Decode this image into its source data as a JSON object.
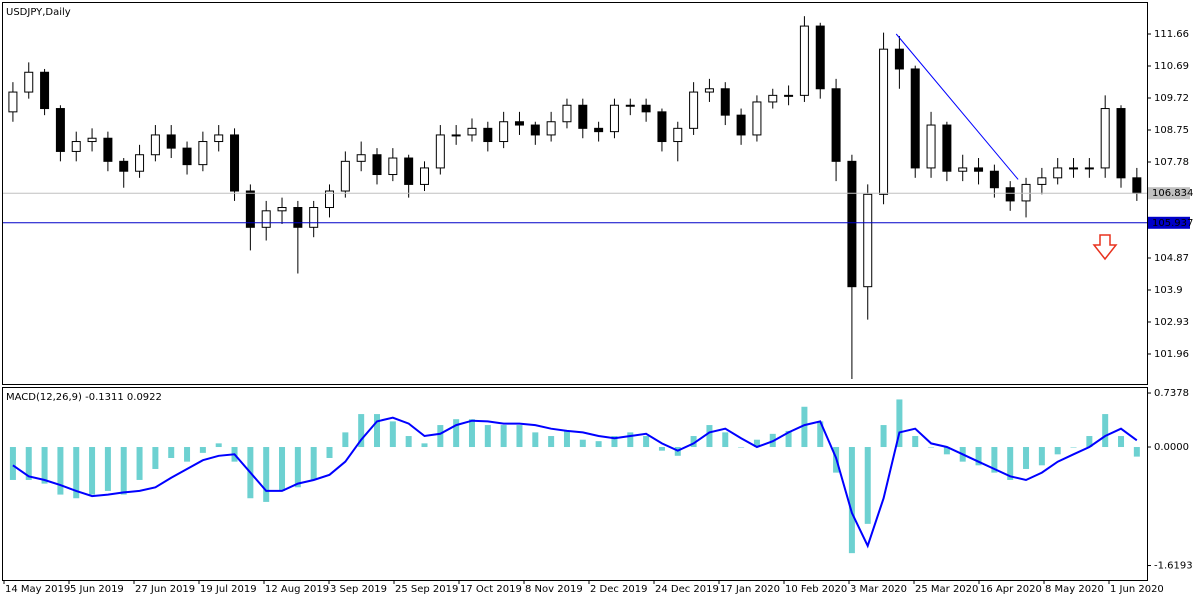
{
  "chart_data": [
    {
      "type": "candlestick",
      "title": "USDJPY,Daily",
      "open": [
        109.3,
        109.9,
        110.5,
        109.4,
        108.1,
        108.4,
        108.5,
        107.8,
        107.5,
        108.0,
        108.6,
        108.2,
        107.7,
        108.4,
        108.6,
        106.9,
        105.8,
        106.3,
        106.4,
        105.8,
        106.4,
        106.9,
        107.8,
        108.0,
        107.4,
        107.9,
        107.1,
        107.6,
        108.6,
        108.6,
        108.8,
        108.4,
        109.0,
        108.9,
        108.6,
        109.0,
        109.5,
        108.8,
        108.7,
        109.5,
        109.5,
        109.3,
        108.4,
        108.8,
        109.9,
        110.0,
        109.2,
        108.6,
        109.6,
        109.8,
        109.8,
        111.9,
        110.0,
        107.8,
        104.0,
        106.8,
        111.2,
        110.6,
        107.6,
        108.9,
        107.5,
        107.6,
        107.5,
        107.0,
        106.6,
        107.1,
        107.3,
        107.6,
        107.6,
        107.6,
        109.4,
        107.3
      ],
      "high": [
        110.2,
        110.8,
        110.6,
        109.5,
        108.7,
        108.8,
        108.7,
        107.9,
        108.3,
        108.9,
        108.9,
        108.4,
        108.7,
        108.9,
        108.8,
        107.1,
        106.6,
        106.7,
        106.6,
        106.6,
        107.1,
        108.1,
        108.4,
        108.2,
        108.2,
        108.0,
        107.8,
        108.9,
        108.9,
        109.1,
        109.0,
        109.3,
        109.3,
        109.0,
        109.3,
        109.7,
        109.7,
        109.0,
        109.7,
        109.7,
        109.7,
        109.4,
        109.0,
        110.2,
        110.3,
        110.2,
        109.4,
        109.8,
        110.0,
        110.1,
        112.2,
        112.0,
        110.3,
        108.0,
        107.1,
        111.7,
        111.6,
        110.7,
        109.3,
        109.0,
        108.0,
        107.9,
        107.7,
        107.2,
        107.3,
        107.6,
        107.9,
        107.9,
        107.9,
        109.8,
        109.5,
        107.6
      ],
      "low": [
        109.0,
        109.7,
        109.2,
        107.8,
        107.8,
        108.1,
        107.5,
        107.0,
        107.3,
        107.8,
        107.9,
        107.4,
        107.5,
        108.1,
        106.6,
        105.1,
        105.4,
        105.9,
        104.4,
        105.5,
        106.1,
        106.7,
        107.5,
        107.1,
        107.2,
        106.7,
        106.9,
        107.4,
        108.3,
        108.4,
        108.1,
        108.2,
        108.6,
        108.3,
        108.4,
        108.8,
        108.5,
        108.4,
        108.5,
        109.2,
        109.0,
        108.1,
        107.8,
        108.6,
        109.6,
        108.9,
        108.3,
        108.4,
        109.4,
        109.5,
        109.6,
        109.7,
        107.2,
        101.2,
        103.0,
        106.5,
        110.0,
        107.3,
        107.3,
        107.2,
        107.2,
        107.1,
        106.7,
        106.3,
        106.1,
        106.8,
        107.1,
        107.3,
        107.3,
        107.3,
        107.0,
        106.6
      ],
      "close": [
        109.9,
        110.5,
        109.4,
        108.1,
        108.4,
        108.5,
        107.8,
        107.5,
        108.0,
        108.6,
        108.2,
        107.7,
        108.4,
        108.6,
        106.9,
        105.8,
        106.3,
        106.4,
        105.8,
        106.4,
        106.9,
        107.8,
        108.0,
        107.4,
        107.9,
        107.1,
        107.6,
        108.6,
        108.6,
        108.8,
        108.4,
        109.0,
        108.9,
        108.6,
        109.0,
        109.5,
        108.8,
        108.7,
        109.5,
        109.5,
        109.3,
        108.4,
        108.8,
        109.9,
        110.0,
        109.2,
        108.6,
        109.6,
        109.8,
        109.8,
        111.9,
        110.0,
        107.8,
        104.0,
        106.8,
        111.2,
        110.6,
        107.6,
        108.9,
        107.5,
        107.6,
        107.5,
        107.0,
        106.6,
        107.1,
        107.3,
        107.6,
        107.6,
        107.6,
        109.4,
        107.3,
        106.834
      ],
      "ylim": [
        101.05,
        112.63
      ],
      "yticks": [
        111.66,
        110.69,
        109.72,
        108.75,
        107.78,
        104.87,
        103.9,
        102.93,
        101.96
      ],
      "current_price": 106.834,
      "level": 105.937,
      "trendline": {
        "x": [
          55.8,
          63.5
        ],
        "y": [
          111.66,
          107.25
        ]
      }
    },
    {
      "type": "macd",
      "title": "MACD(12,26,9) -0.1311 0.0922",
      "histogram": [
        -0.45,
        -0.45,
        -0.5,
        -0.65,
        -0.7,
        -0.65,
        -0.6,
        -0.65,
        -0.45,
        -0.3,
        -0.15,
        -0.2,
        -0.08,
        0.05,
        -0.2,
        -0.7,
        -0.75,
        -0.6,
        -0.55,
        -0.45,
        -0.15,
        0.2,
        0.45,
        0.45,
        0.35,
        0.15,
        0.05,
        0.3,
        0.38,
        0.38,
        0.3,
        0.3,
        0.3,
        0.2,
        0.15,
        0.22,
        0.1,
        0.08,
        0.15,
        0.2,
        0.15,
        -0.05,
        -0.12,
        0.15,
        0.3,
        0.2,
        0.0,
        0.1,
        0.18,
        0.22,
        0.55,
        0.35,
        -0.35,
        -1.45,
        -1.05,
        0.3,
        0.65,
        0.15,
        0.0,
        -0.1,
        -0.2,
        -0.25,
        -0.35,
        -0.45,
        -0.3,
        -0.25,
        -0.1,
        0.0,
        0.15,
        0.45,
        0.15,
        -0.1311
      ],
      "hist_color": "#6dd1d1",
      "signal": [
        -0.25,
        -0.4,
        -0.45,
        -0.52,
        -0.6,
        -0.67,
        -0.65,
        -0.62,
        -0.6,
        -0.55,
        -0.42,
        -0.3,
        -0.18,
        -0.12,
        -0.1,
        -0.35,
        -0.6,
        -0.6,
        -0.5,
        -0.45,
        -0.38,
        -0.2,
        0.1,
        0.35,
        0.4,
        0.32,
        0.15,
        0.18,
        0.3,
        0.36,
        0.35,
        0.32,
        0.32,
        0.3,
        0.25,
        0.22,
        0.2,
        0.15,
        0.12,
        0.15,
        0.18,
        0.05,
        -0.05,
        0.05,
        0.2,
        0.25,
        0.12,
        0.0,
        0.08,
        0.2,
        0.3,
        0.35,
        -0.15,
        -0.9,
        -1.35,
        -0.7,
        0.2,
        0.25,
        0.05,
        0.0,
        -0.1,
        -0.2,
        -0.3,
        -0.4,
        -0.45,
        -0.35,
        -0.2,
        -0.1,
        0.0,
        0.15,
        0.25,
        0.0922
      ],
      "signal_color": "#0000ff",
      "ylim": [
        -1.817,
        0.82
      ],
      "yticks": [
        0.7378,
        {
          "value": 0,
          "label": "0.0000"
        },
        -1.6193
      ],
      "x_labels": [
        "14 May 2019",
        "5 Jun 2019",
        "27 Jun 2019",
        "19 Jul 2019",
        "12 Aug 2019",
        "3 Sep 2019",
        "25 Sep 2019",
        "17 Oct 2019",
        "8 Nov 2019",
        "2 Dec 2019",
        "24 Dec 2019",
        "17 Jan 2020",
        "10 Feb 2020",
        "3 Mar 2020",
        "25 Mar 2020",
        "16 Apr 2020",
        "8 May 2020",
        "1 Jun 2020"
      ]
    }
  ]
}
